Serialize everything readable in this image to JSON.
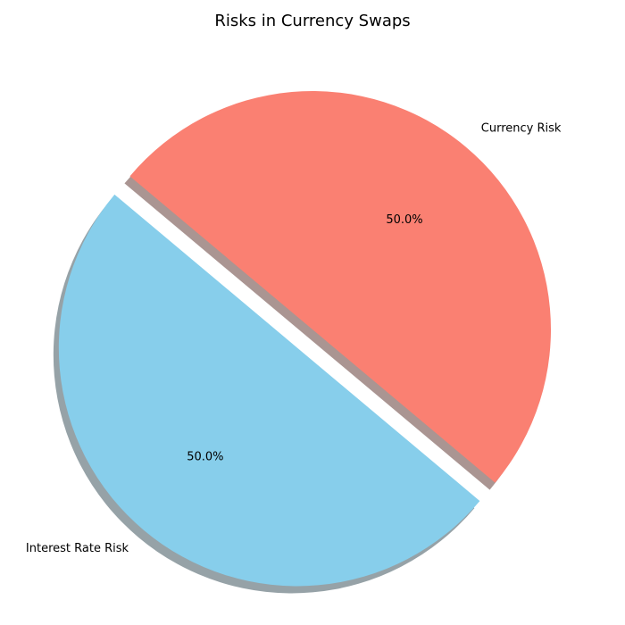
{
  "chart_data": {
    "type": "pie",
    "title": "Risks in Currency Swaps",
    "start_angle_degrees": 140,
    "explode": [
      0.1,
      0
    ],
    "shadow": true,
    "slices": [
      {
        "label": "Interest Rate Risk",
        "value": 50,
        "percent_label": "50.0%",
        "color": "#87CEEB"
      },
      {
        "label": "Currency Risk",
        "value": 50,
        "percent_label": "50.0%",
        "color": "#FA8072"
      }
    ]
  }
}
